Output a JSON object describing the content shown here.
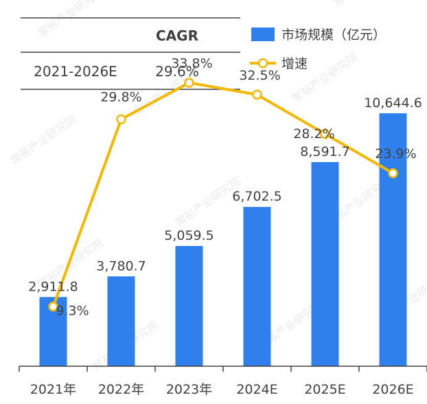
{
  "cagr_table": {
    "header": "CAGR",
    "period": "2021-2026E",
    "value": "29.6%"
  },
  "legend": {
    "bar_label": "市场规模（亿元）",
    "line_label": "增速"
  },
  "colors": {
    "bar": "#2F80ED",
    "line": "#F5B800",
    "marker_fill": "#FFFFFF",
    "text": "#404040",
    "axis": "#404040",
    "rule": "#404040",
    "watermark": "#D9D9D9"
  },
  "watermark_text": "常裕产业研究院",
  "chart_data": {
    "type": "bar",
    "categories": [
      "2021年",
      "2022年",
      "2023年",
      "2024E",
      "2025E",
      "2026E"
    ],
    "series": [
      {
        "name": "市场规模（亿元）",
        "type": "bar",
        "values": [
          2911.8,
          3780.7,
          5059.5,
          6702.5,
          8591.7,
          10644.6
        ],
        "labels": [
          "2,911.8",
          "3,780.7",
          "5,059.5",
          "6,702.5",
          "8,591.7",
          "10,644.6"
        ]
      },
      {
        "name": "增速",
        "type": "line",
        "values": [
          9.3,
          29.8,
          33.8,
          32.5,
          28.2,
          23.9
        ],
        "labels": [
          "9.3%",
          "29.8%",
          "33.8%",
          "32.5%",
          "28.2%",
          "23.9%"
        ]
      }
    ],
    "ylim_bar": [
      0,
      12000
    ],
    "ylim_line": [
      0,
      40
    ],
    "legend_position": "top-right",
    "grid": false
  }
}
